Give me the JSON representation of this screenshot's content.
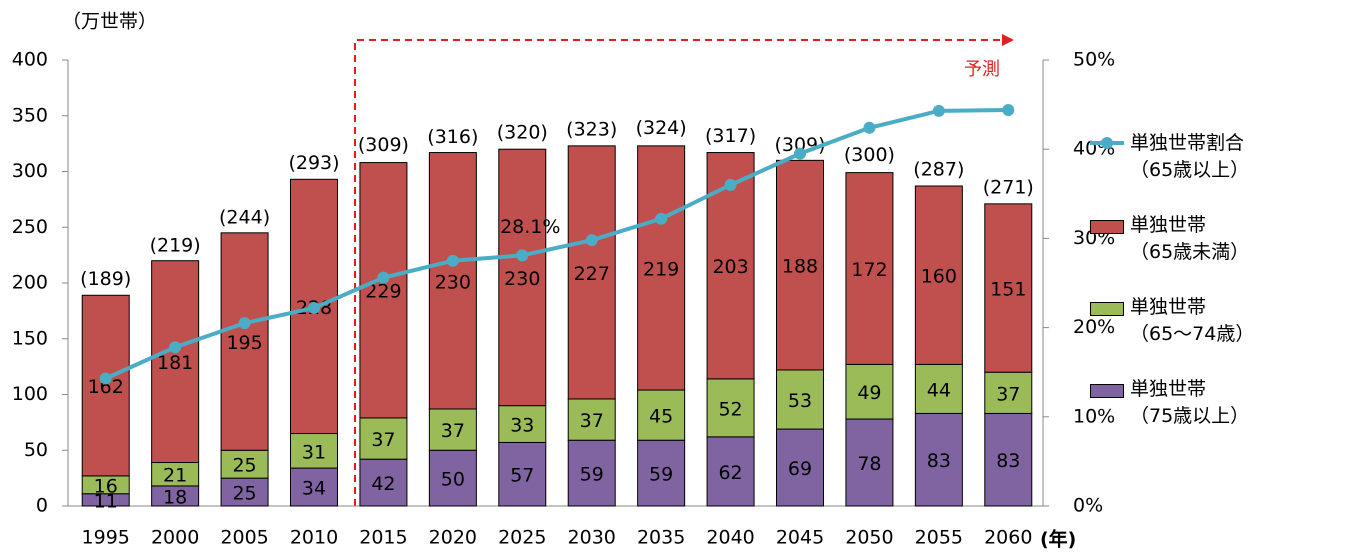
{
  "chart_data": {
    "type": "stacked-bar-line",
    "y_axis_label": "（万世帯）",
    "x_axis_label": "(年)",
    "annotation": "予測",
    "categories": [
      "1995",
      "2000",
      "2005",
      "2010",
      "2015",
      "2020",
      "2025",
      "2030",
      "2035",
      "2040",
      "2045",
      "2050",
      "2055",
      "2060"
    ],
    "series": [
      {
        "name": "単独世帯\n（75歳以上）",
        "color": "#8064a2",
        "values": [
          11,
          18,
          25,
          34,
          42,
          50,
          57,
          59,
          59,
          62,
          69,
          78,
          83,
          83
        ]
      },
      {
        "name": "単独世帯\n（65～74歳）",
        "color": "#9bbb59",
        "values": [
          16,
          21,
          25,
          31,
          37,
          37,
          33,
          37,
          45,
          52,
          53,
          49,
          44,
          37
        ]
      },
      {
        "name": "単独世帯\n（65歳未満）",
        "color": "#c0504d",
        "values": [
          162,
          181,
          195,
          228,
          229,
          230,
          230,
          227,
          219,
          203,
          188,
          172,
          160,
          151
        ]
      },
      {
        "name": "単独世帯割合\n（65歳以上）",
        "color": "#4bacc6",
        "axis": "y2",
        "values": [
          14.3,
          17.8,
          20.5,
          22.2,
          25.6,
          27.5,
          28.1,
          29.8,
          32.2,
          36.0,
          39.5,
          42.4,
          44.3,
          44.4
        ],
        "value_labels": [
          null,
          null,
          null,
          null,
          null,
          null,
          "28.1%",
          null,
          null,
          null,
          null,
          null,
          null,
          null
        ]
      }
    ],
    "totals": {
      "values": [
        189,
        219,
        244,
        293,
        309,
        316,
        320,
        323,
        324,
        317,
        309,
        300,
        287,
        271
      ],
      "value_labels": [
        "(189)",
        "(219)",
        "(244)",
        "(293)",
        "(309)",
        "(316)",
        "(320)",
        "(323)",
        "(324)",
        "(317)",
        "(309)",
        "(300)",
        "(287)",
        "(271)"
      ]
    },
    "ylim": [
      0,
      400
    ],
    "yticks": [
      0,
      50,
      100,
      150,
      200,
      250,
      300,
      350,
      400
    ],
    "y2lim": [
      0,
      50
    ],
    "y2ticks": [
      {
        "value": 0,
        "label": "0%"
      },
      {
        "value": 10,
        "label": "10%"
      },
      {
        "value": 20,
        "label": "20%"
      },
      {
        "value": 30,
        "label": "30%"
      },
      {
        "value": 40,
        "label": "40%"
      },
      {
        "value": 50,
        "label": "50%"
      }
    ]
  }
}
